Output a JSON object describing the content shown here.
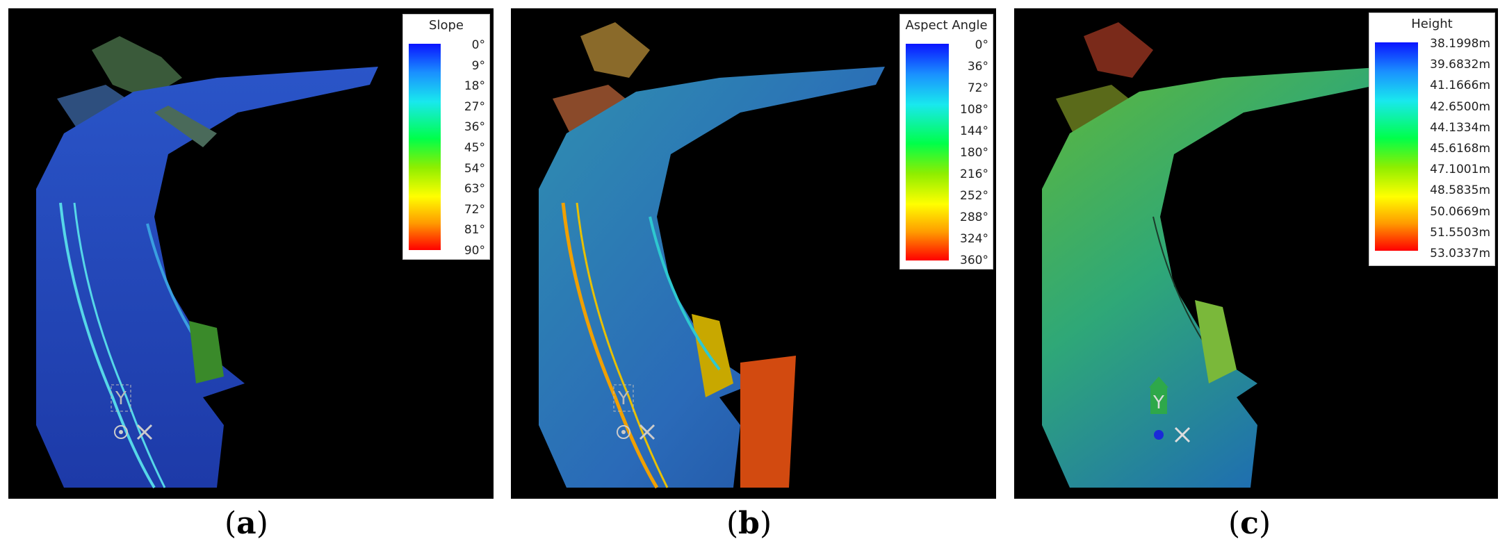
{
  "panels": [
    {
      "id": "a",
      "legend": {
        "title": "Slope",
        "ticks": [
          "0°",
          "9°",
          "18°",
          "27°",
          "36°",
          "45°",
          "54°",
          "63°",
          "72°",
          "81°",
          "90°"
        ]
      },
      "axis_label": "Y",
      "caption_letter": "a"
    },
    {
      "id": "b",
      "legend": {
        "title": "Aspect Angle",
        "ticks": [
          "0°",
          "36°",
          "72°",
          "108°",
          "144°",
          "180°",
          "216°",
          "252°",
          "288°",
          "324°",
          "360°"
        ]
      },
      "axis_label": "Y",
      "caption_letter": "b"
    },
    {
      "id": "c",
      "legend": {
        "title": "Height",
        "ticks": [
          "38.1998m",
          "39.6832m",
          "41.1666m",
          "42.6500m",
          "44.1334m",
          "45.6168m",
          "47.1001m",
          "48.5835m",
          "50.0669m",
          "51.5503m",
          "53.0337m"
        ]
      },
      "axis_label": "Y",
      "caption_letter": "c"
    }
  ],
  "caption_paren_open": "(",
  "caption_paren_close": ")"
}
